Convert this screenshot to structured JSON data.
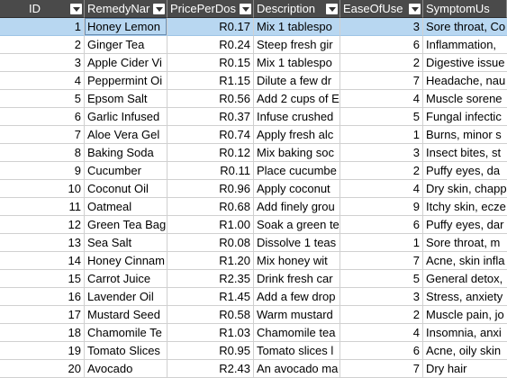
{
  "columns": [
    {
      "label": "ID"
    },
    {
      "label": "RemedyNar"
    },
    {
      "label": "PricePerDos"
    },
    {
      "label": "Description"
    },
    {
      "label": "EaseOfUse"
    },
    {
      "label": "SymptomUs"
    }
  ],
  "rows": [
    {
      "id": "1",
      "name": "Honey Lemon",
      "price": "R0.17",
      "desc": "Mix 1 tablespo",
      "ease": "3",
      "sym": "Sore throat, Co"
    },
    {
      "id": "2",
      "name": "Ginger Tea",
      "price": "R0.24",
      "desc": "Steep fresh gir",
      "ease": "6",
      "sym": "Inflammation,"
    },
    {
      "id": "3",
      "name": "Apple Cider Vi",
      "price": "R0.15",
      "desc": "Mix 1 tablespo",
      "ease": "2",
      "sym": "Digestive issue"
    },
    {
      "id": "4",
      "name": "Peppermint Oi",
      "price": "R1.15",
      "desc": "Dilute a few dr",
      "ease": "7",
      "sym": "Headache, nau"
    },
    {
      "id": "5",
      "name": "Epsom Salt",
      "price": "R0.56",
      "desc": "Add 2 cups of E",
      "ease": "4",
      "sym": "Muscle sorene"
    },
    {
      "id": "6",
      "name": "Garlic Infused",
      "price": "R0.37",
      "desc": "Infuse crushed",
      "ease": "5",
      "sym": "Fungal infectic"
    },
    {
      "id": "7",
      "name": "Aloe Vera Gel",
      "price": "R0.74",
      "desc": "Apply fresh alc",
      "ease": "1",
      "sym": "Burns, minor s"
    },
    {
      "id": "8",
      "name": "Baking Soda",
      "price": "R0.12",
      "desc": "Mix baking soc",
      "ease": "3",
      "sym": "Insect bites, st"
    },
    {
      "id": "9",
      "name": "Cucumber",
      "price": "R0.11",
      "desc": "Place cucumbe",
      "ease": "2",
      "sym": "Puffy eyes, da"
    },
    {
      "id": "10",
      "name": "Coconut Oil",
      "price": "R0.96",
      "desc": "Apply coconut",
      "ease": "4",
      "sym": "Dry skin, chapp"
    },
    {
      "id": "11",
      "name": "Oatmeal",
      "price": "R0.68",
      "desc": "Add finely grou",
      "ease": "9",
      "sym": "Itchy skin, ecze"
    },
    {
      "id": "12",
      "name": "Green Tea Bag",
      "price": "R1.00",
      "desc": "Soak a green te",
      "ease": "6",
      "sym": "Puffy eyes, dar"
    },
    {
      "id": "13",
      "name": "Sea Salt",
      "price": "R0.08",
      "desc": "Dissolve 1 teas",
      "ease": "1",
      "sym": "Sore throat, m"
    },
    {
      "id": "14",
      "name": "Honey Cinnam",
      "price": "R1.20",
      "desc": "Mix honey wit",
      "ease": "7",
      "sym": "Acne, skin infla"
    },
    {
      "id": "15",
      "name": "Carrot Juice",
      "price": "R2.35",
      "desc": "Drink fresh car",
      "ease": "5",
      "sym": "General detox,"
    },
    {
      "id": "16",
      "name": "Lavender Oil",
      "price": "R1.45",
      "desc": "Add a few drop",
      "ease": "3",
      "sym": "Stress, anxiety"
    },
    {
      "id": "17",
      "name": "Mustard Seed",
      "price": "R0.58",
      "desc": "Warm mustard",
      "ease": "2",
      "sym": "Muscle pain, jo"
    },
    {
      "id": "18",
      "name": "Chamomile Te",
      "price": "R1.03",
      "desc": "Chamomile tea",
      "ease": "4",
      "sym": "Insomnia, anxi"
    },
    {
      "id": "19",
      "name": "Tomato Slices",
      "price": "R0.95",
      "desc": "Tomato slices l",
      "ease": "6",
      "sym": "Acne, oily skin"
    },
    {
      "id": "20",
      "name": "Avocado",
      "price": "R2.43",
      "desc": "An avocado ma",
      "ease": "7",
      "sym": "Dry hair"
    }
  ],
  "selected_row": 0
}
